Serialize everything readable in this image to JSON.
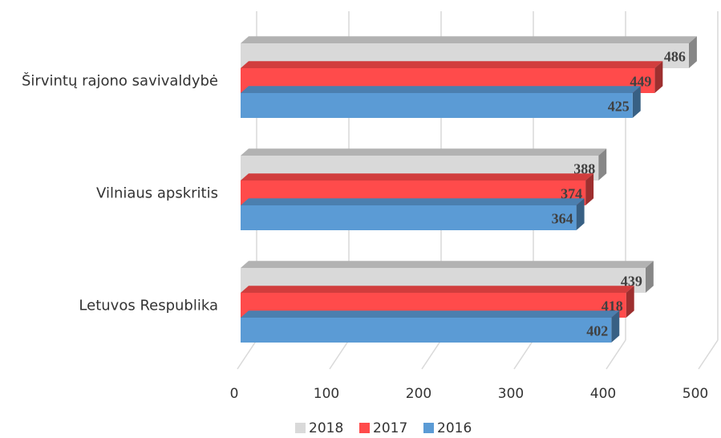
{
  "chart_data": {
    "type": "bar",
    "orientation": "horizontal",
    "three_d": true,
    "categories": [
      "Širvintų rajono savivaldybė",
      "Vilniaus apskritis",
      "Letuvos Respublika"
    ],
    "series": [
      {
        "name": "2018",
        "values": [
          486,
          388,
          439
        ],
        "color": "#d9d9d9"
      },
      {
        "name": "2017",
        "values": [
          449,
          374,
          418
        ],
        "color": "#ff4b4b"
      },
      {
        "name": "2016",
        "values": [
          425,
          364,
          402
        ],
        "color": "#5b9bd5"
      }
    ],
    "xlim": [
      0,
      500
    ],
    "xticks": [
      "0",
      "100",
      "200",
      "300",
      "400",
      "500"
    ],
    "title": "",
    "xlabel": "",
    "ylabel": "",
    "grid": true,
    "legend_position": "bottom"
  }
}
